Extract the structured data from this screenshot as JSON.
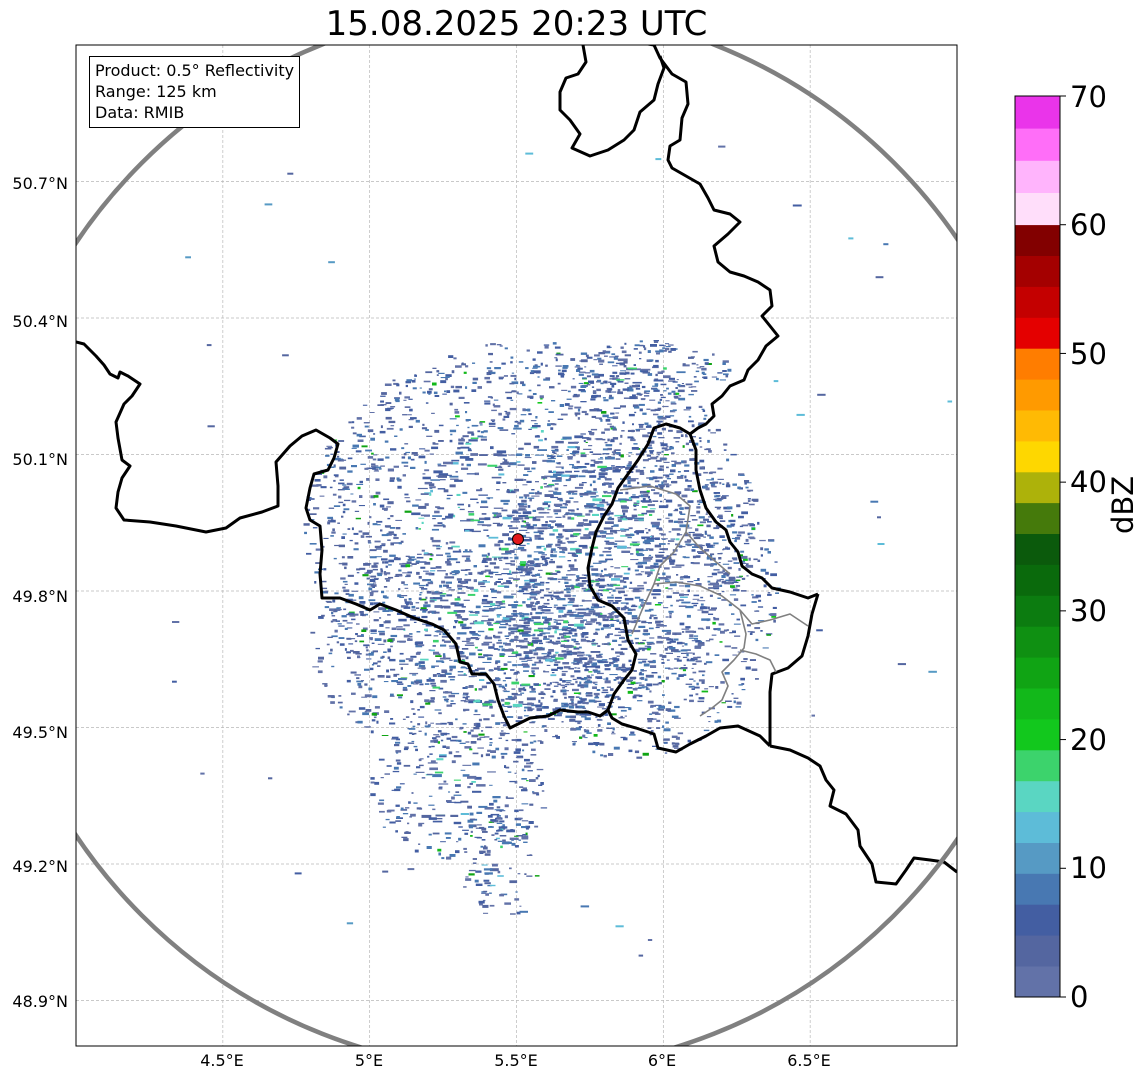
{
  "title": "15.08.2025 20:23 UTC",
  "info": {
    "product": "Product: 0.5° Reflectivity",
    "range": "Range: 125 km",
    "data": "Data: RMIB"
  },
  "axes": {
    "lat_ticks": [
      "50.7°N",
      "50.4°N",
      "50.1°N",
      "49.8°N",
      "49.5°N",
      "49.2°N",
      "48.9°N"
    ],
    "lon_ticks": [
      "4.5°E",
      "5°E",
      "5.5°E",
      "6°E",
      "6.5°E"
    ],
    "lon_range": [
      4.0,
      7.0
    ],
    "lat_range": [
      48.8,
      51.0
    ]
  },
  "radar": {
    "site_lon": 5.505,
    "site_lat": 49.914,
    "site_marker_color": "#e31a1c",
    "range_ring_color": "#808080"
  },
  "colorbar": {
    "label": "dBZ",
    "ticks": [
      "0",
      "10",
      "20",
      "30",
      "40",
      "50",
      "60",
      "70"
    ],
    "range": [
      0,
      70
    ],
    "colors": [
      "#6272a8",
      "#5466a0",
      "#435ea2",
      "#4878b2",
      "#569ac4",
      "#5dbcd8",
      "#5ad6c2",
      "#3cd36c",
      "#12c81d",
      "#12b81a",
      "#10a414",
      "#0f9012",
      "#0c7c10",
      "#0a6a0c",
      "#0b5a0c",
      "#457a0b",
      "#adb20a",
      "#fed700",
      "#ffba04",
      "#ff9a00",
      "#ff7d00",
      "#e40000",
      "#c40000",
      "#a40000",
      "#820000",
      "#ffdefa",
      "#ffb4fc",
      "#ff6ef8",
      "#ea34ea"
    ]
  }
}
